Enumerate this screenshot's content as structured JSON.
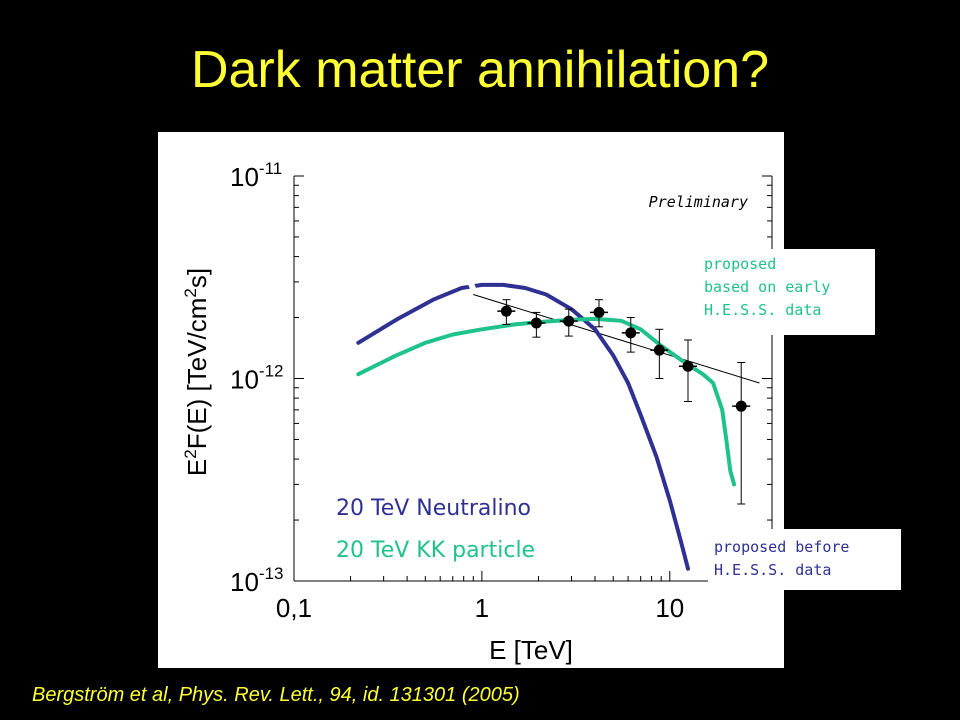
{
  "slide": {
    "title": "Dark matter annihilation?",
    "citation": "Bergström et al, Phys. Rev. Lett., 94, id. 131301 (2005)"
  },
  "callouts": {
    "early_hess": "proposed\nbased on early\nH.E.S.S. data",
    "before_hess": "proposed before\nH.E.S.S. data"
  },
  "colors": {
    "title": "#ffff33",
    "neutralino": "#2e3192",
    "kk_particle": "#20c28c",
    "data": "#000000"
  },
  "chart_data": {
    "type": "scatter",
    "xlabel": "E [TeV]",
    "ylabel": "E2F(E) [TeV/cm2s]",
    "xscale": "log",
    "yscale": "log",
    "xlim": [
      0.1,
      35
    ],
    "ylim": [
      1e-13,
      1e-11
    ],
    "xticks": [
      {
        "value": 0.1,
        "label": "0,1"
      },
      {
        "value": 1,
        "label": "1"
      },
      {
        "value": 10,
        "label": "10"
      }
    ],
    "yticks": [
      {
        "value": 1e-11,
        "base": "10",
        "exp": "-11"
      },
      {
        "value": 1e-12,
        "base": "10",
        "exp": "-12"
      },
      {
        "value": 1e-13,
        "base": "10",
        "exp": "-13"
      }
    ],
    "annotation": "Preliminary",
    "series": [
      {
        "name": "20 TeV Neutralino",
        "type": "line",
        "x": [
          0.22,
          0.35,
          0.55,
          0.78,
          1.0,
          1.3,
          1.7,
          2.2,
          3.0,
          4.0,
          5.0,
          6.0,
          7.0,
          8.5,
          10.0,
          11.5,
          12.5
        ],
        "y": [
          1.5e-12,
          1.95e-12,
          2.45e-12,
          2.8e-12,
          2.9e-12,
          2.9e-12,
          2.8e-12,
          2.6e-12,
          2.2e-12,
          1.75e-12,
          1.3e-12,
          9.5e-13,
          6.6e-13,
          4.1e-13,
          2.5e-13,
          1.55e-13,
          1.15e-13
        ]
      },
      {
        "name": "20 TeV KK particle",
        "type": "line",
        "x": [
          0.22,
          0.35,
          0.5,
          0.7,
          1.0,
          1.5,
          2.0,
          3.0,
          4.0,
          5.5,
          7.0,
          9.0,
          12.0,
          15.0,
          17.0,
          19.0,
          20.0,
          21.0,
          22.0
        ],
        "y": [
          1.05e-12,
          1.3e-12,
          1.5e-12,
          1.65e-12,
          1.75e-12,
          1.85e-12,
          1.9e-12,
          1.95e-12,
          1.97e-12,
          1.93e-12,
          1.75e-12,
          1.45e-12,
          1.2e-12,
          1.05e-12,
          9.5e-13,
          7e-13,
          5e-13,
          3.5e-13,
          3e-13
        ]
      },
      {
        "name": "H.E.S.S. data",
        "type": "scatter",
        "x": [
          1.35,
          1.95,
          2.9,
          4.2,
          6.2,
          8.8,
          12.5,
          24.0
        ],
        "y": [
          2.15e-12,
          1.88e-12,
          1.92e-12,
          2.12e-12,
          1.68e-12,
          1.38e-12,
          1.15e-12,
          7.3e-13
        ],
        "y_low": [
          1.85e-12,
          1.6e-12,
          1.62e-12,
          1.8e-12,
          1.35e-12,
          1e-12,
          7.7e-13,
          2.4e-13
        ],
        "y_high": [
          2.45e-12,
          2.12e-12,
          2.2e-12,
          2.45e-12,
          2e-12,
          1.75e-12,
          1.55e-12,
          1.2e-12
        ]
      },
      {
        "name": "power-law fit",
        "type": "line",
        "x": [
          0.9,
          30.0
        ],
        "y": [
          2.6e-12,
          9.5e-13
        ]
      }
    ]
  }
}
